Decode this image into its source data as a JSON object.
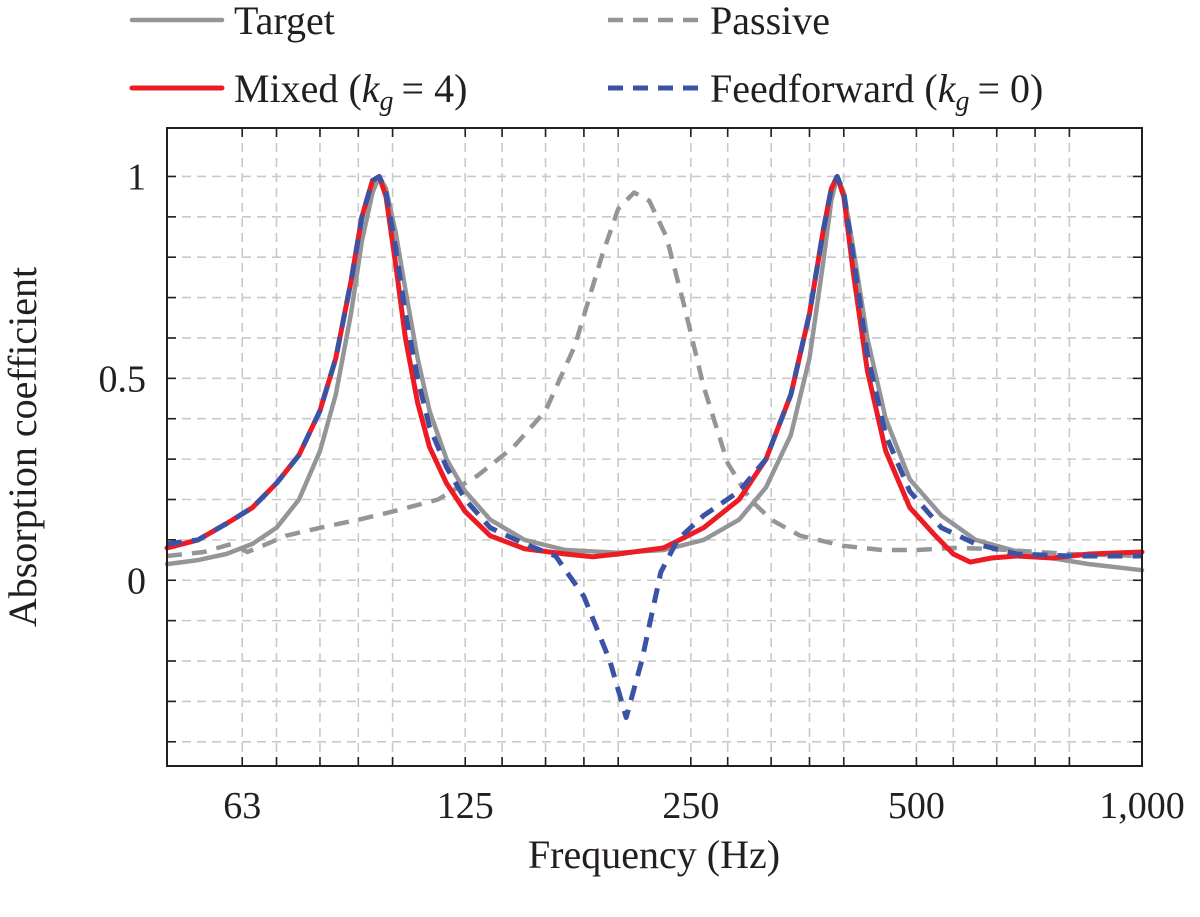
{
  "chart_data": {
    "type": "line",
    "xscale": "log",
    "xlim": [
      50,
      1000
    ],
    "ylim": [
      -0.46,
      1.12
    ],
    "xlabel": "Frequency (Hz)",
    "ylabel": "Absorption coefficient",
    "xticks": [
      {
        "value": 63,
        "label": "63"
      },
      {
        "value": 125,
        "label": "125"
      },
      {
        "value": 250,
        "label": "250"
      },
      {
        "value": 500,
        "label": "500"
      },
      {
        "value": 1000,
        "label": "1,000"
      }
    ],
    "yticks": [
      {
        "value": 0,
        "label": "0"
      },
      {
        "value": 0.5,
        "label": "0.5"
      },
      {
        "value": 1,
        "label": "1"
      }
    ],
    "x_minor_grid": [
      70,
      80,
      90,
      100,
      140,
      160,
      180,
      200,
      280,
      320,
      360,
      400,
      560,
      640,
      720,
      800
    ],
    "y_minor_grid": [
      -0.4,
      -0.3,
      -0.2,
      -0.1,
      0.1,
      0.2,
      0.3,
      0.4,
      0.6,
      0.7,
      0.8,
      0.9
    ],
    "grid": true,
    "legend_position": "above",
    "series": [
      {
        "name": "Target",
        "label": "Target",
        "color": "#939598",
        "style": "solid",
        "points": [
          [
            50,
            0.04
          ],
          [
            55,
            0.05
          ],
          [
            60,
            0.065
          ],
          [
            65,
            0.09
          ],
          [
            70,
            0.13
          ],
          [
            75,
            0.2
          ],
          [
            80,
            0.32
          ],
          [
            84,
            0.46
          ],
          [
            88,
            0.66
          ],
          [
            91,
            0.84
          ],
          [
            94,
            0.96
          ],
          [
            96,
            1.0
          ],
          [
            98,
            0.97
          ],
          [
            101,
            0.86
          ],
          [
            104,
            0.72
          ],
          [
            108,
            0.55
          ],
          [
            112,
            0.42
          ],
          [
            118,
            0.3
          ],
          [
            125,
            0.22
          ],
          [
            135,
            0.15
          ],
          [
            150,
            0.1
          ],
          [
            170,
            0.075
          ],
          [
            200,
            0.068
          ],
          [
            230,
            0.075
          ],
          [
            260,
            0.1
          ],
          [
            290,
            0.15
          ],
          [
            315,
            0.23
          ],
          [
            340,
            0.36
          ],
          [
            360,
            0.55
          ],
          [
            375,
            0.78
          ],
          [
            385,
            0.94
          ],
          [
            392,
            1.0
          ],
          [
            400,
            0.96
          ],
          [
            412,
            0.82
          ],
          [
            430,
            0.6
          ],
          [
            455,
            0.4
          ],
          [
            490,
            0.25
          ],
          [
            540,
            0.16
          ],
          [
            600,
            0.1
          ],
          [
            700,
            0.065
          ],
          [
            850,
            0.04
          ],
          [
            1000,
            0.025
          ]
        ]
      },
      {
        "name": "Passive",
        "label": "Passive",
        "color": "#939598",
        "style": "dashed",
        "points": [
          [
            50,
            0.06
          ],
          [
            56,
            0.07
          ],
          [
            61,
            0.09
          ],
          [
            64,
            0.07
          ],
          [
            67,
            0.085
          ],
          [
            72,
            0.11
          ],
          [
            80,
            0.13
          ],
          [
            90,
            0.15
          ],
          [
            100,
            0.17
          ],
          [
            115,
            0.2
          ],
          [
            130,
            0.26
          ],
          [
            145,
            0.33
          ],
          [
            160,
            0.42
          ],
          [
            175,
            0.58
          ],
          [
            190,
            0.8
          ],
          [
            200,
            0.92
          ],
          [
            210,
            0.96
          ],
          [
            220,
            0.94
          ],
          [
            232,
            0.85
          ],
          [
            245,
            0.68
          ],
          [
            260,
            0.48
          ],
          [
            280,
            0.29
          ],
          [
            300,
            0.2
          ],
          [
            320,
            0.15
          ],
          [
            350,
            0.11
          ],
          [
            400,
            0.085
          ],
          [
            450,
            0.075
          ],
          [
            500,
            0.075
          ],
          [
            560,
            0.08
          ],
          [
            620,
            0.078
          ],
          [
            700,
            0.072
          ],
          [
            800,
            0.065
          ],
          [
            1000,
            0.06
          ]
        ]
      },
      {
        "name": "Mixed",
        "label": "Mixed",
        "legend_math": {
          "k": "k",
          "sub": "g",
          "eq": "= 4"
        },
        "color": "#ed1c24",
        "style": "solid",
        "points": [
          [
            50,
            0.08
          ],
          [
            55,
            0.1
          ],
          [
            60,
            0.14
          ],
          [
            65,
            0.18
          ],
          [
            70,
            0.24
          ],
          [
            75,
            0.31
          ],
          [
            80,
            0.42
          ],
          [
            84,
            0.55
          ],
          [
            88,
            0.74
          ],
          [
            91,
            0.9
          ],
          [
            94,
            0.99
          ],
          [
            96,
            1.0
          ],
          [
            98,
            0.95
          ],
          [
            101,
            0.78
          ],
          [
            104,
            0.6
          ],
          [
            108,
            0.44
          ],
          [
            112,
            0.33
          ],
          [
            118,
            0.24
          ],
          [
            125,
            0.17
          ],
          [
            135,
            0.11
          ],
          [
            150,
            0.078
          ],
          [
            170,
            0.065
          ],
          [
            185,
            0.058
          ],
          [
            200,
            0.065
          ],
          [
            230,
            0.08
          ],
          [
            260,
            0.13
          ],
          [
            290,
            0.2
          ],
          [
            315,
            0.3
          ],
          [
            340,
            0.46
          ],
          [
            360,
            0.66
          ],
          [
            375,
            0.86
          ],
          [
            385,
            0.97
          ],
          [
            392,
            1.0
          ],
          [
            400,
            0.95
          ],
          [
            412,
            0.76
          ],
          [
            430,
            0.52
          ],
          [
            455,
            0.32
          ],
          [
            490,
            0.18
          ],
          [
            530,
            0.11
          ],
          [
            560,
            0.065
          ],
          [
            590,
            0.045
          ],
          [
            630,
            0.055
          ],
          [
            680,
            0.06
          ],
          [
            760,
            0.055
          ],
          [
            850,
            0.065
          ],
          [
            1000,
            0.07
          ]
        ]
      },
      {
        "name": "Feedforward",
        "label": "Feedforward",
        "legend_math": {
          "k": "k",
          "sub": "g",
          "eq": "= 0"
        },
        "color": "#3a53a4",
        "style": "dashed",
        "points": [
          [
            50,
            0.09
          ],
          [
            55,
            0.1
          ],
          [
            60,
            0.14
          ],
          [
            65,
            0.18
          ],
          [
            70,
            0.24
          ],
          [
            75,
            0.31
          ],
          [
            80,
            0.42
          ],
          [
            84,
            0.55
          ],
          [
            88,
            0.74
          ],
          [
            91,
            0.9
          ],
          [
            94,
            0.99
          ],
          [
            96,
            1.0
          ],
          [
            98,
            0.96
          ],
          [
            101,
            0.82
          ],
          [
            104,
            0.66
          ],
          [
            108,
            0.5
          ],
          [
            112,
            0.38
          ],
          [
            118,
            0.28
          ],
          [
            125,
            0.2
          ],
          [
            135,
            0.13
          ],
          [
            150,
            0.09
          ],
          [
            165,
            0.06
          ],
          [
            180,
            -0.04
          ],
          [
            195,
            -0.2
          ],
          [
            205,
            -0.34
          ],
          [
            215,
            -0.2
          ],
          [
            228,
            0.02
          ],
          [
            240,
            0.1
          ],
          [
            260,
            0.16
          ],
          [
            290,
            0.22
          ],
          [
            315,
            0.3
          ],
          [
            340,
            0.46
          ],
          [
            360,
            0.66
          ],
          [
            375,
            0.86
          ],
          [
            385,
            0.97
          ],
          [
            392,
            1.0
          ],
          [
            400,
            0.96
          ],
          [
            412,
            0.8
          ],
          [
            430,
            0.56
          ],
          [
            455,
            0.36
          ],
          [
            490,
            0.22
          ],
          [
            540,
            0.13
          ],
          [
            600,
            0.09
          ],
          [
            680,
            0.065
          ],
          [
            800,
            0.06
          ],
          [
            1000,
            0.06
          ]
        ]
      }
    ]
  }
}
